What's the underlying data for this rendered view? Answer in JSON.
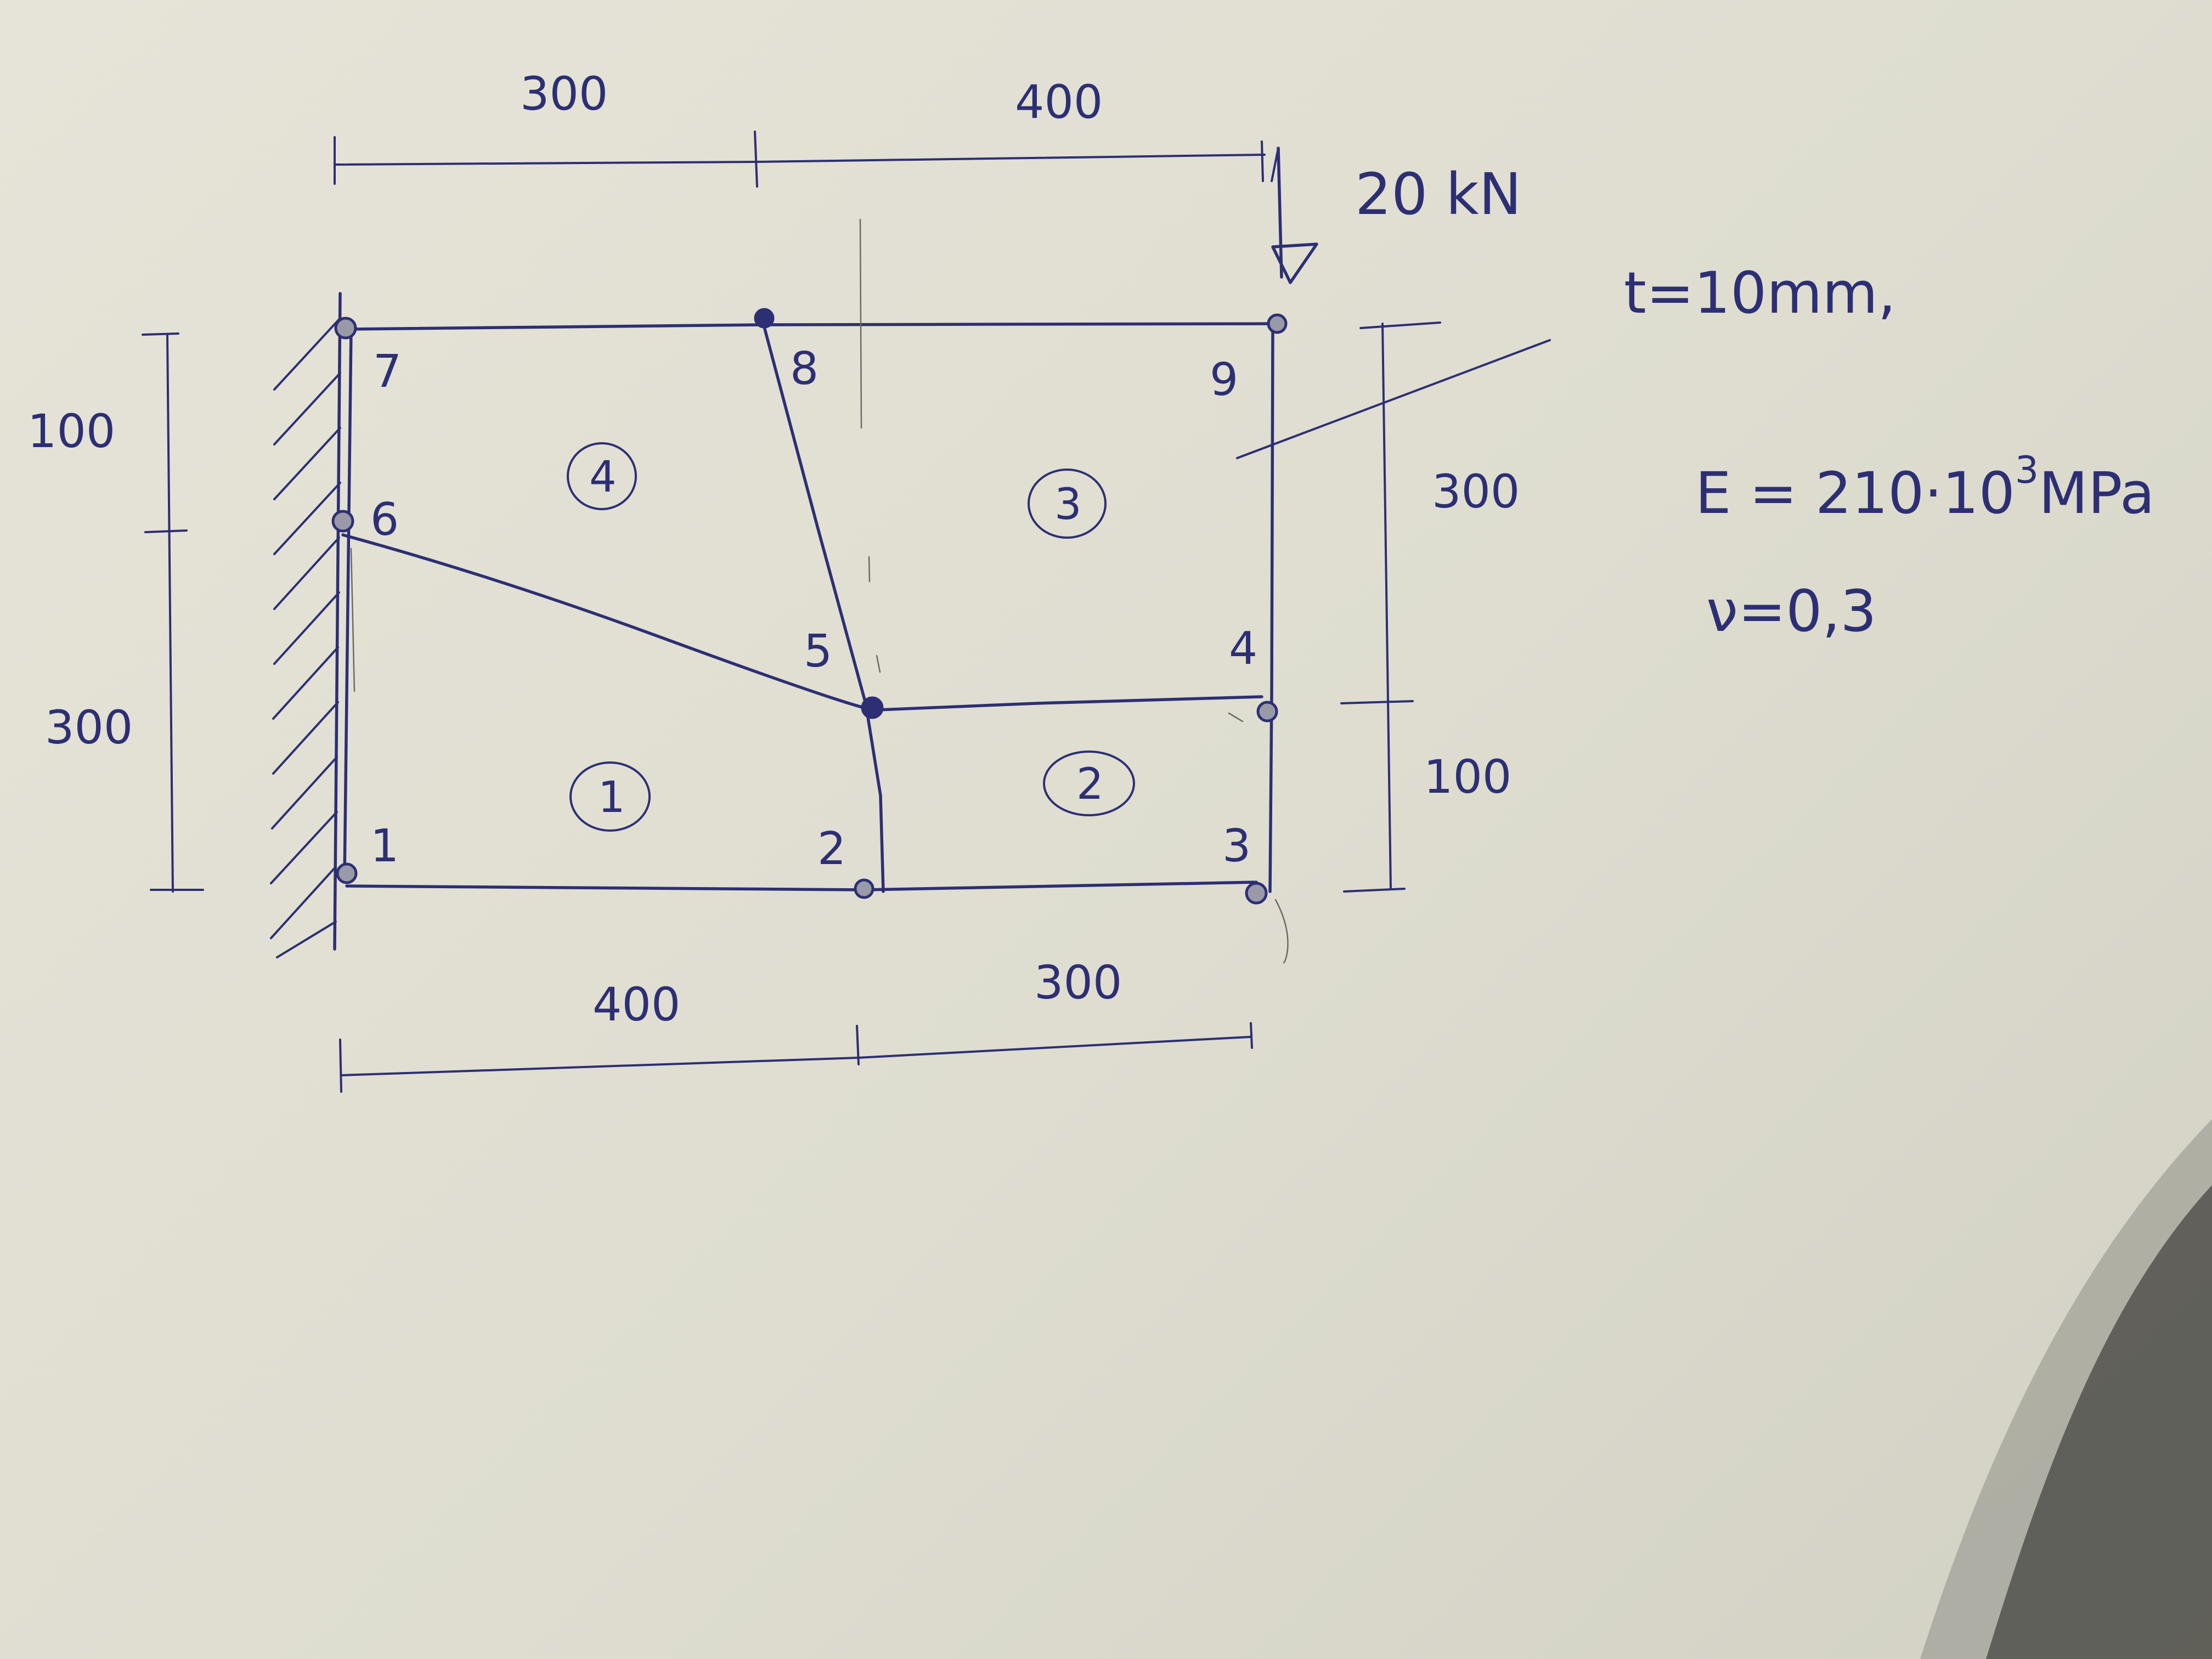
{
  "dimensions": {
    "top_left": "300",
    "top_right": "400",
    "bottom_left": "400",
    "bottom_right": "300",
    "left_upper": "100",
    "left_lower": "300",
    "right_upper": "300",
    "right_lower": "100"
  },
  "load": "20 kN",
  "properties": {
    "thickness": "t=10mm,",
    "modulus": "E = 210·10",
    "modulus_exp": "3",
    "modulus_unit": "MPa",
    "poisson": "ν=0,3"
  },
  "nodes": [
    "1",
    "2",
    "3",
    "4",
    "5",
    "6",
    "7",
    "8",
    "9"
  ],
  "elements": [
    "1",
    "2",
    "3",
    "4"
  ],
  "ink_color": "#2d2f74"
}
